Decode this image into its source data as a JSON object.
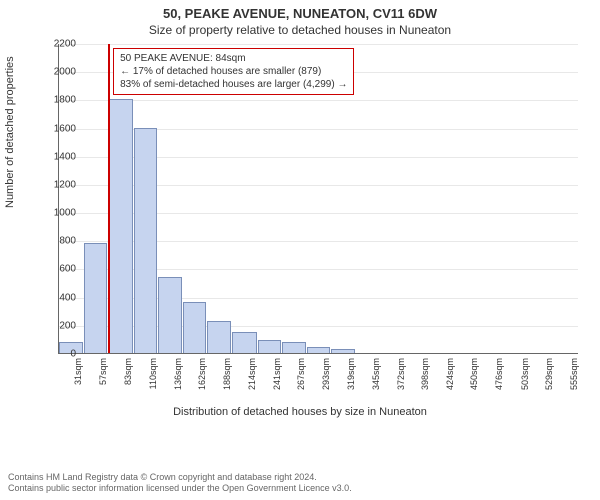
{
  "title_main": "50, PEAKE AVENUE, NUNEATON, CV11 6DW",
  "title_sub": "Size of property relative to detached houses in Nuneaton",
  "ylabel": "Number of detached properties",
  "xlabel": "Distribution of detached houses by size in Nuneaton",
  "callout": {
    "line1": "50 PEAKE AVENUE: 84sqm",
    "line2": "← 17% of detached houses are smaller (879)",
    "line3": "83% of semi-detached houses are larger (4,299) →"
  },
  "footer": {
    "line1": "Contains HM Land Registry data © Crown copyright and database right 2024.",
    "line2": "Contains public sector information licensed under the Open Government Licence v3.0."
  },
  "chart": {
    "type": "histogram",
    "ylim": [
      0,
      2200
    ],
    "ytick_step": 200,
    "background_color": "#ffffff",
    "grid_color": "#e8e8e8",
    "axis_color": "#666666",
    "bar_fill": "#c6d4ef",
    "bar_stroke": "#7a8fb8",
    "marker_color": "#cc0000",
    "callout_border": "#cc0000",
    "font_color": "#333333",
    "label_fontsize": 11,
    "tick_fontsize": 10,
    "xtick_fontsize": 9,
    "marker_x_value": 84,
    "x_categories": [
      "31sqm",
      "57sqm",
      "83sqm",
      "110sqm",
      "136sqm",
      "162sqm",
      "188sqm",
      "214sqm",
      "241sqm",
      "267sqm",
      "293sqm",
      "319sqm",
      "345sqm",
      "372sqm",
      "398sqm",
      "424sqm",
      "450sqm",
      "476sqm",
      "503sqm",
      "529sqm",
      "555sqm"
    ],
    "x_edges": [
      31,
      57,
      83,
      110,
      136,
      162,
      188,
      214,
      241,
      267,
      293,
      319,
      345,
      372,
      398,
      424,
      450,
      476,
      503,
      529,
      555,
      581
    ],
    "bar_values": [
      80,
      780,
      1800,
      1600,
      540,
      360,
      230,
      150,
      90,
      80,
      45,
      30,
      0,
      0,
      0,
      0,
      0,
      0,
      0,
      0,
      0
    ]
  }
}
